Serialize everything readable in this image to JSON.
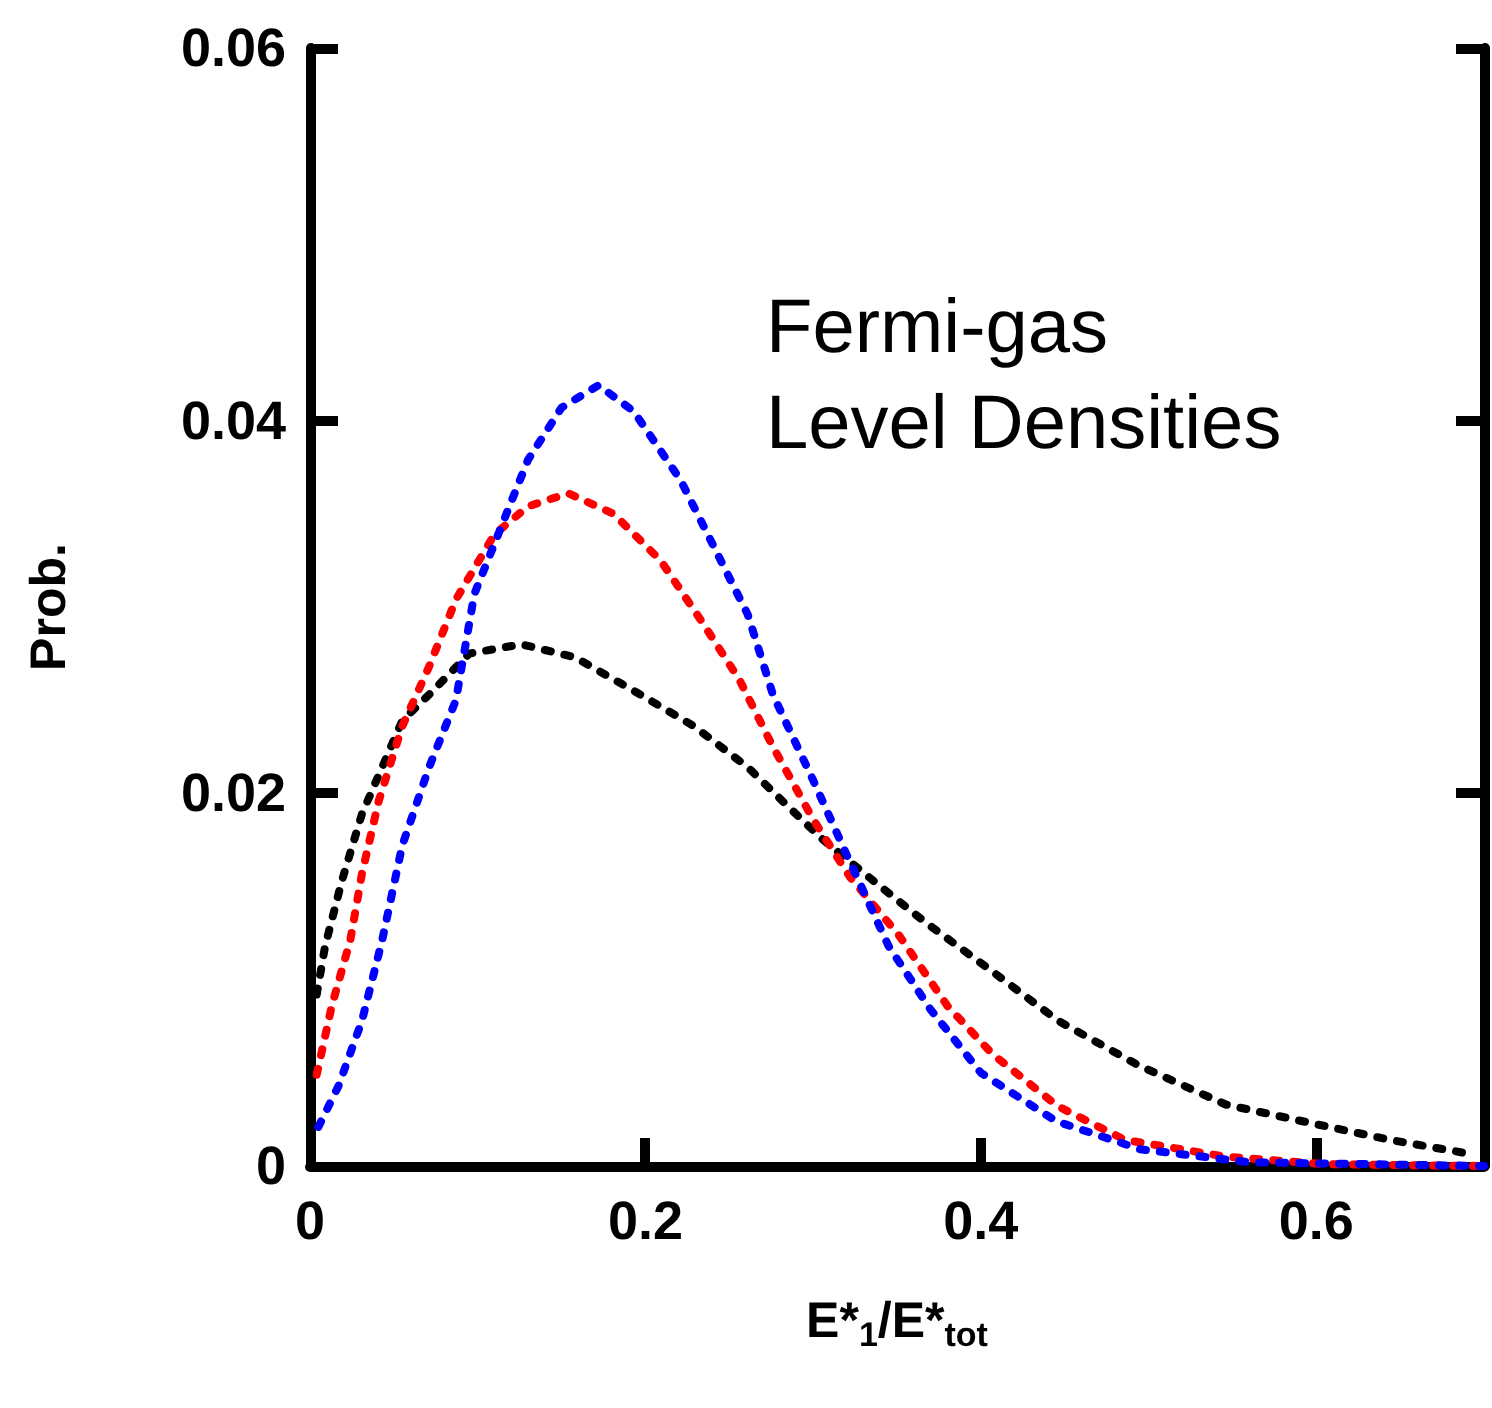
{
  "chart_data": {
    "type": "line",
    "xlabel": "E*$_{1}$/E*$_{tot}$",
    "ylabel": "Prob.",
    "annotations": [
      "Fermi-gas\nLevel Densities"
    ],
    "xlim": [
      0,
      0.7
    ],
    "xticks": [
      0,
      0.2,
      0.4,
      0.6
    ],
    "ylim": [
      0,
      0.06
    ],
    "yticks": [
      0,
      0.02,
      0.04,
      0.06
    ],
    "grid": false,
    "marker": "none",
    "line_style": "dotted",
    "series": [
      {
        "color": "#000000",
        "x": [
          0.004,
          0.009,
          0.019,
          0.031,
          0.043,
          0.055,
          0.071,
          0.095,
          0.126,
          0.158,
          0.197,
          0.229,
          0.261,
          0.285,
          0.306,
          0.336,
          0.368,
          0.403,
          0.446,
          0.494,
          0.546,
          0.597,
          0.644,
          0.695
        ],
        "values": [
          0.0092,
          0.0118,
          0.0153,
          0.0189,
          0.0214,
          0.0239,
          0.0253,
          0.0275,
          0.028,
          0.0273,
          0.0253,
          0.0236,
          0.0214,
          0.0193,
          0.0175,
          0.0153,
          0.013,
          0.0107,
          0.0078,
          0.0054,
          0.0033,
          0.0023,
          0.0014,
          0.0006
        ]
      },
      {
        "color": "#ff0000",
        "x": [
          0.004,
          0.013,
          0.024,
          0.031,
          0.041,
          0.055,
          0.071,
          0.087,
          0.11,
          0.13,
          0.154,
          0.181,
          0.209,
          0.233,
          0.256,
          0.276,
          0.3,
          0.322,
          0.351,
          0.38,
          0.407,
          0.446,
          0.486,
          0.546,
          0.605,
          0.7
        ],
        "values": [
          0.0049,
          0.0086,
          0.0121,
          0.0157,
          0.0196,
          0.0236,
          0.0268,
          0.0304,
          0.0339,
          0.0354,
          0.0361,
          0.035,
          0.0325,
          0.0293,
          0.0261,
          0.0225,
          0.0186,
          0.0155,
          0.0124,
          0.0086,
          0.006,
          0.0032,
          0.0014,
          0.0005,
          0.0001,
          0
        ]
      },
      {
        "color": "#0000ff",
        "x": [
          0.005,
          0.017,
          0.031,
          0.043,
          0.055,
          0.071,
          0.087,
          0.098,
          0.114,
          0.13,
          0.15,
          0.172,
          0.193,
          0.221,
          0.241,
          0.261,
          0.276,
          0.3,
          0.32,
          0.345,
          0.37,
          0.4,
          0.445,
          0.495,
          0.56,
          0.7
        ],
        "values": [
          0.0021,
          0.0043,
          0.0078,
          0.0121,
          0.0172,
          0.0214,
          0.025,
          0.0307,
          0.0343,
          0.0379,
          0.0407,
          0.0419,
          0.0405,
          0.0368,
          0.0332,
          0.0296,
          0.0253,
          0.0207,
          0.0167,
          0.0118,
          0.0084,
          0.005,
          0.0024,
          0.0009,
          0.0002,
          0
        ]
      }
    ]
  }
}
